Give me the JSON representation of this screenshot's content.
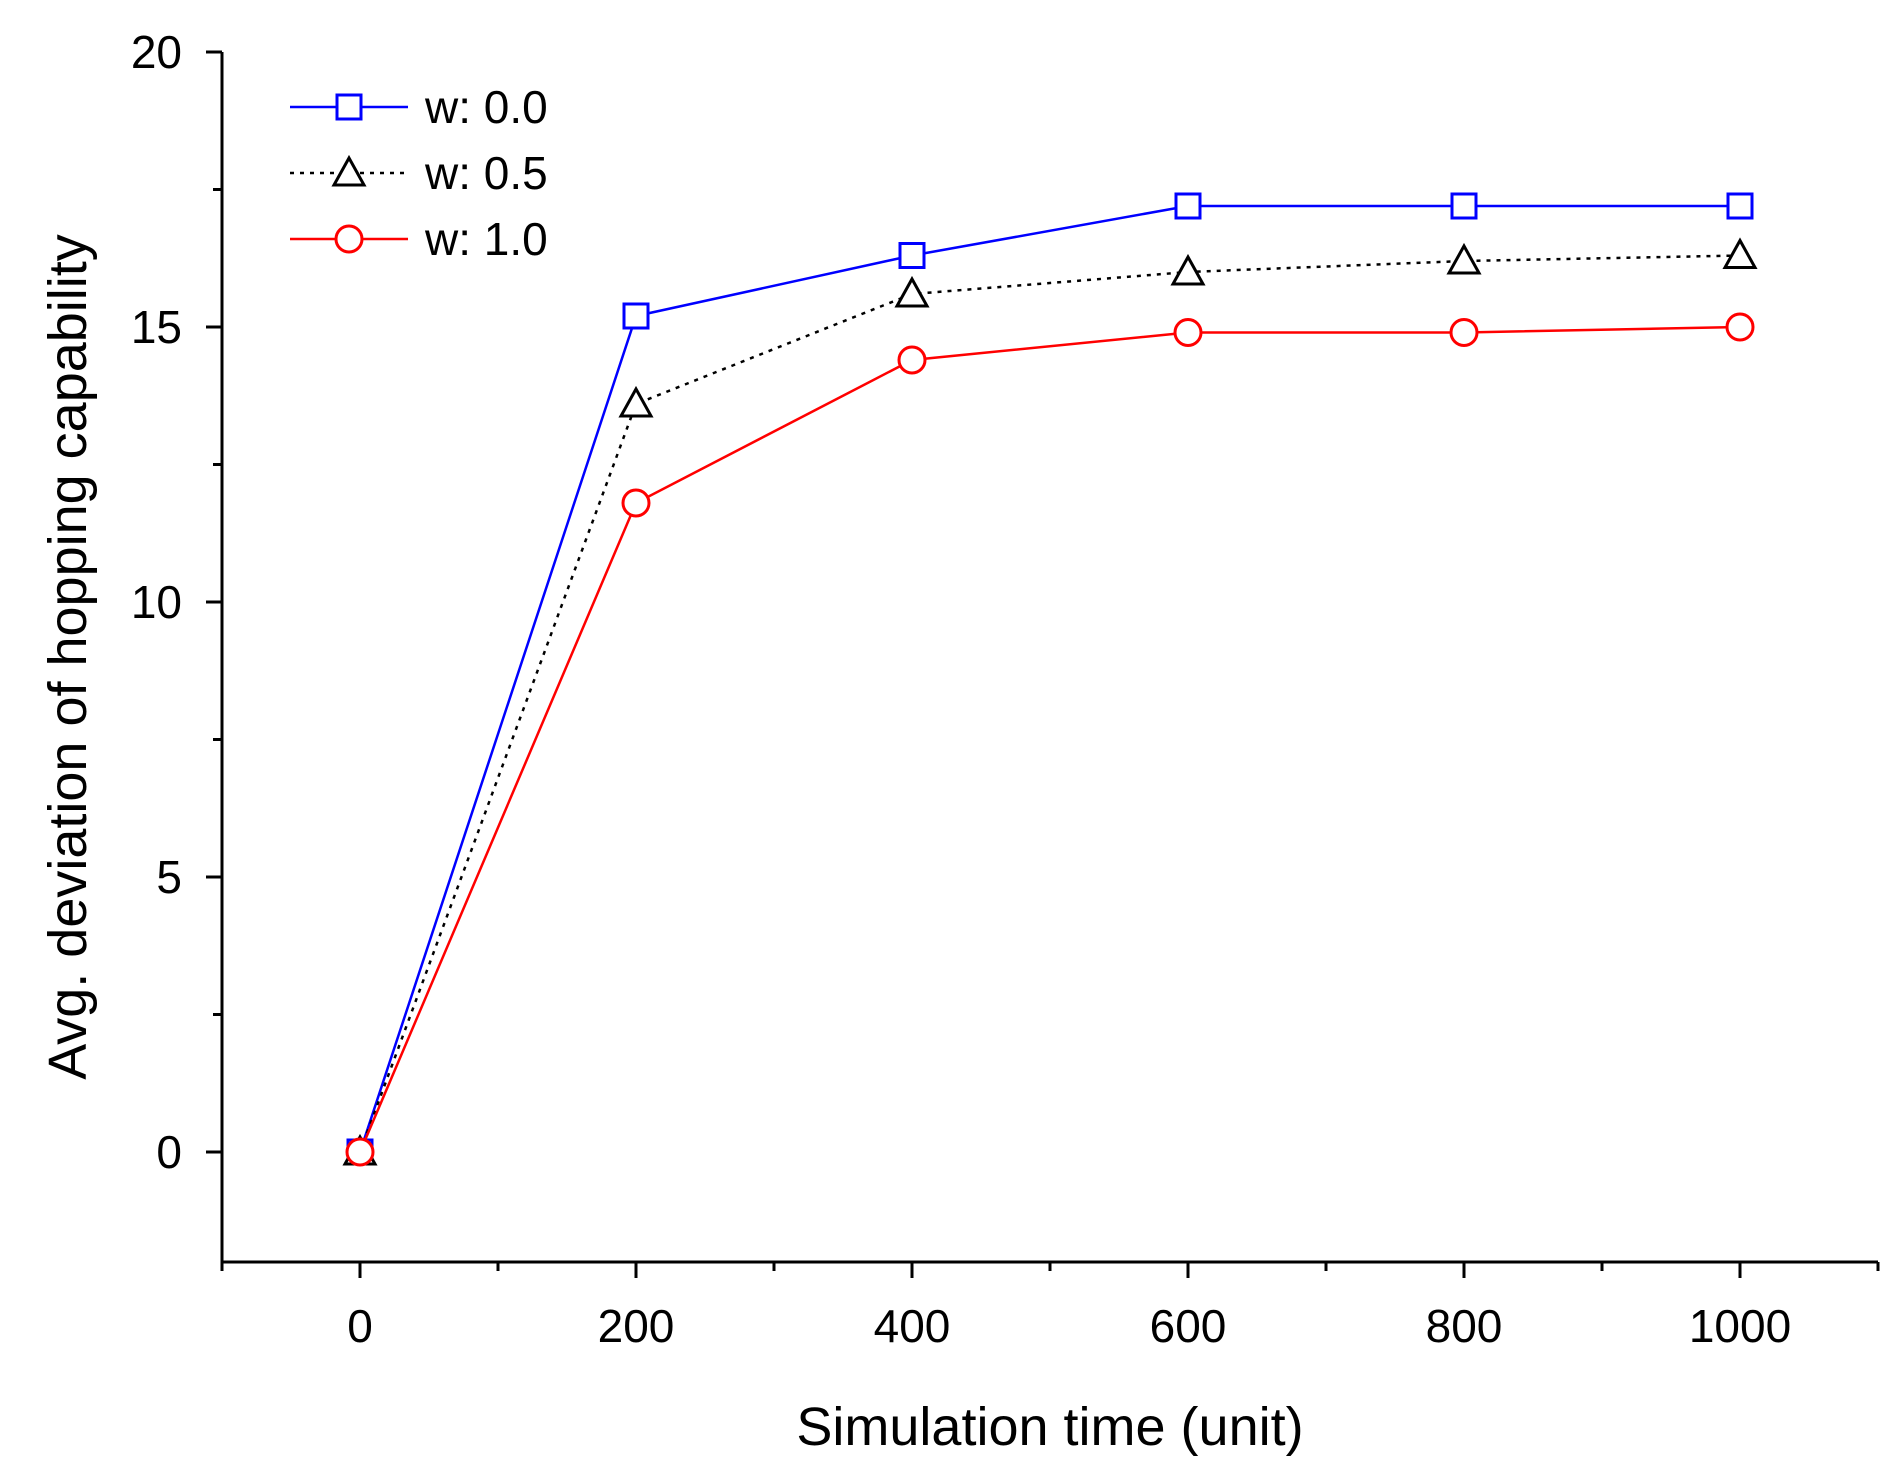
{
  "chart_data": {
    "type": "line",
    "title": "",
    "xlabel": "Simulation time (unit)",
    "ylabel": "Avg. deviation of hopping capability",
    "xlim": [
      -100,
      1100
    ],
    "ylim": [
      -2,
      20
    ],
    "xticks": [
      0,
      200,
      400,
      600,
      800,
      1000
    ],
    "xtick_labels": [
      "0",
      "200",
      "400",
      "600",
      "800",
      "1000"
    ],
    "yticks": [
      0,
      5,
      10,
      15,
      20
    ],
    "ytick_labels": [
      "0",
      "5",
      "10",
      "15",
      "20"
    ],
    "grid": false,
    "legend_position": "top-left",
    "x": [
      0,
      200,
      400,
      600,
      800,
      1000
    ],
    "series": [
      {
        "name": "w: 0.0",
        "values": [
          0,
          15.2,
          16.3,
          17.2,
          17.2,
          17.2
        ],
        "color": "#0000ff",
        "marker": "square",
        "dash": "solid"
      },
      {
        "name": "w: 0.5",
        "values": [
          0,
          13.6,
          15.6,
          16.0,
          16.2,
          16.3
        ],
        "color": "#000000",
        "marker": "triangle",
        "dash": "dotted"
      },
      {
        "name": "w: 1.0",
        "values": [
          0,
          11.8,
          14.4,
          14.9,
          14.9,
          15.0
        ],
        "color": "#ff0000",
        "marker": "circle",
        "dash": "solid"
      }
    ]
  }
}
